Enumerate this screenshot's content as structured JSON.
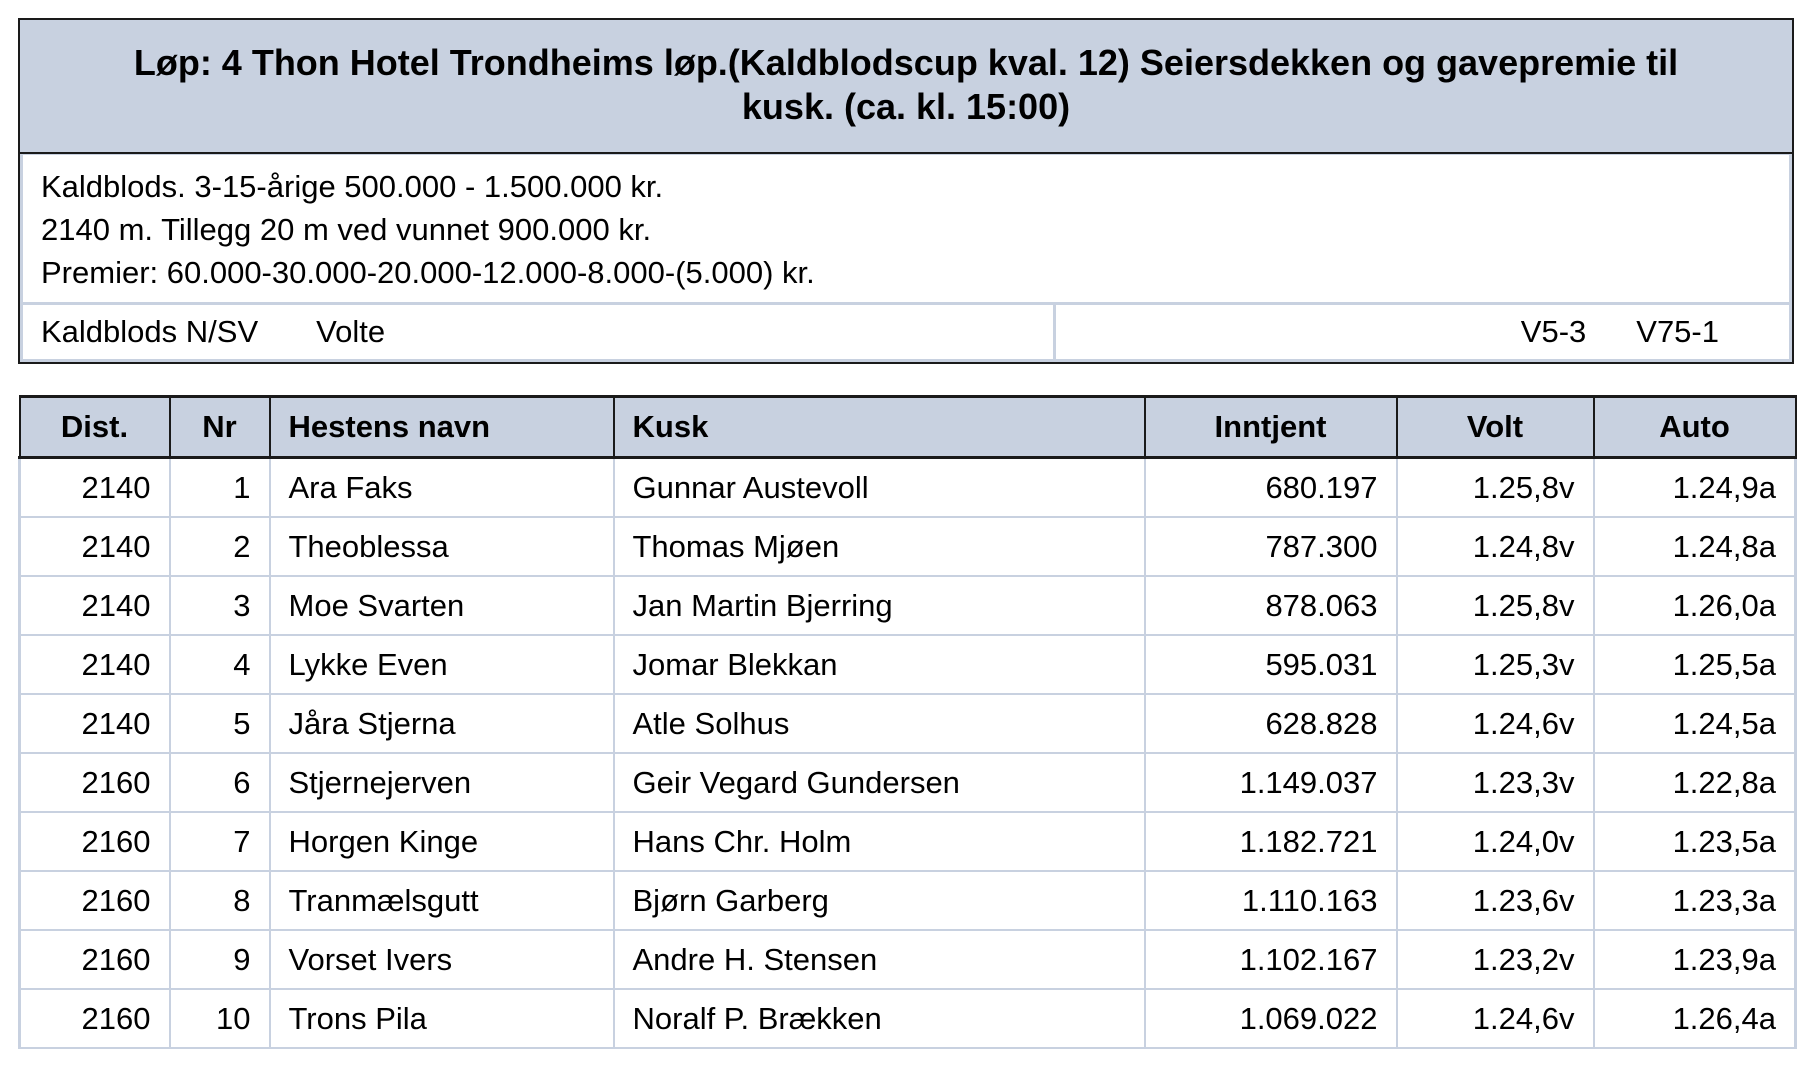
{
  "race": {
    "title_line1": "Løp: 4  Thon Hotel Trondheims løp.(Kaldblodscup kval. 12) Seiersdekken og gavepremie til",
    "title_line2": "kusk.  (ca. kl. 15:00)",
    "info": [
      "Kaldblods. 3-15-årige 500.000 - 1.500.000 kr.",
      "2140 m. Tillegg 20 m ved vunnet 900.000 kr.",
      "Premier: 60.000-30.000-20.000-12.000-8.000-(5.000) kr."
    ],
    "category": "Kaldblods N/SV",
    "start_type": "Volte",
    "game1": "V5-3",
    "game2": "V75-1"
  },
  "table": {
    "headers": [
      "Dist.",
      "Nr",
      "Hestens navn",
      "Kusk",
      "Inntjent",
      "Volt",
      "Auto"
    ],
    "rows": [
      [
        "2140",
        "1",
        "Ara Faks",
        "Gunnar Austevoll",
        "680.197",
        "1.25,8v",
        "1.24,9a"
      ],
      [
        "2140",
        "2",
        "Theoblessa",
        "Thomas Mjøen",
        "787.300",
        "1.24,8v",
        "1.24,8a"
      ],
      [
        "2140",
        "3",
        "Moe Svarten",
        "Jan Martin Bjerring",
        "878.063",
        "1.25,8v",
        "1.26,0a"
      ],
      [
        "2140",
        "4",
        "Lykke Even",
        "Jomar Blekkan",
        "595.031",
        "1.25,3v",
        "1.25,5a"
      ],
      [
        "2140",
        "5",
        "Jåra Stjerna",
        "Atle Solhus",
        "628.828",
        "1.24,6v",
        "1.24,5a"
      ],
      [
        "2160",
        "6",
        "Stjernejerven",
        "Geir Vegard Gundersen",
        "1.149.037",
        "1.23,3v",
        "1.22,8a"
      ],
      [
        "2160",
        "7",
        "Horgen Kinge",
        "Hans Chr. Holm",
        "1.182.721",
        "1.24,0v",
        "1.23,5a"
      ],
      [
        "2160",
        "8",
        "Tranmælsgutt",
        "Bjørn Garberg",
        "1.110.163",
        "1.23,6v",
        "1.23,3a"
      ],
      [
        "2160",
        "9",
        "Vorset Ivers",
        "Andre H. Stensen",
        "1.102.167",
        "1.23,2v",
        "1.23,9a"
      ],
      [
        "2160",
        "10",
        "Trons Pila",
        "Noralf P. Brækken",
        "1.069.022",
        "1.24,6v",
        "1.26,4a"
      ]
    ]
  }
}
